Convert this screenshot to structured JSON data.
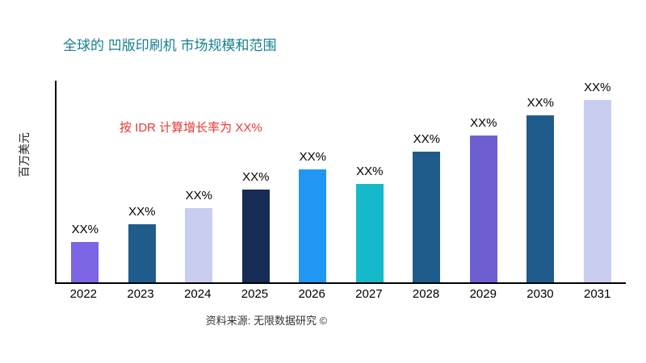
{
  "page": {
    "title": "全球的 凹版印刷机 市场规模和范围",
    "growth_note": "按 IDR 计算增长率为 XX%",
    "ylabel": "百万美元",
    "source": "资料来源: 无限数据研究 ©"
  },
  "chart_data": {
    "type": "bar",
    "title": "全球的 凹版印刷机 市场规模和范围",
    "categories": [
      "2022",
      "2023",
      "2024",
      "2025",
      "2026",
      "2027",
      "2028",
      "2029",
      "2030",
      "2031"
    ],
    "values": [
      20,
      29,
      37,
      46,
      56,
      49,
      65,
      73,
      83,
      92
    ],
    "bar_labels": [
      "XX%",
      "XX%",
      "XX%",
      "XX%",
      "XX%",
      "XX%",
      "XX%",
      "XX%",
      "XX%",
      "XX%"
    ],
    "bar_colors": [
      "#7C64E3",
      "#1F5C8B",
      "#C9CDEF",
      "#172C55",
      "#2196F3",
      "#15B9C9",
      "#1F5C8B",
      "#6D5FD1",
      "#1F5C8B",
      "#C9CDEF"
    ],
    "xlabel": "",
    "ylabel": "百万美元",
    "ylim": [
      0,
      100
    ],
    "grid": false,
    "legend": "none",
    "annotation": "按 IDR 计算增长率为 XX%",
    "annotation_color": "#E53935",
    "title_color": "#17808E",
    "source": "资料来源: 无限数据研究 ©"
  }
}
